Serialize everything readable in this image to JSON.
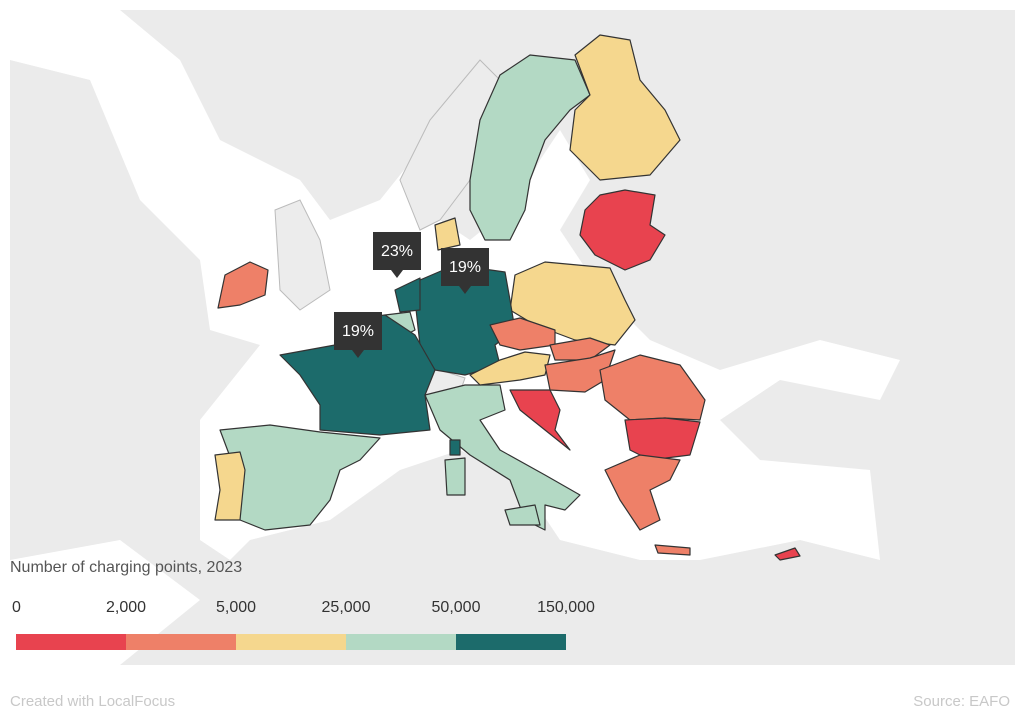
{
  "annotations": [
    "23%",
    "19%",
    "19%"
  ],
  "legend": {
    "title": "Number of charging points, 2023",
    "ticks": [
      0,
      {
        "value": 2000,
        "label": "2,000"
      },
      {
        "value": 5000,
        "label": "5,000"
      },
      {
        "value": 25000,
        "label": "25,000"
      },
      {
        "value": 50000,
        "label": "50,000"
      },
      {
        "value": 150000,
        "label": "150,000"
      }
    ],
    "colors": [
      "#e8434f",
      "#ee8068",
      "#f5d78e",
      "#b3d9c4",
      "#1c6b6b"
    ]
  },
  "footer": {
    "credit": "Created with LocalFocus",
    "source": "Source:  EAFO"
  }
}
